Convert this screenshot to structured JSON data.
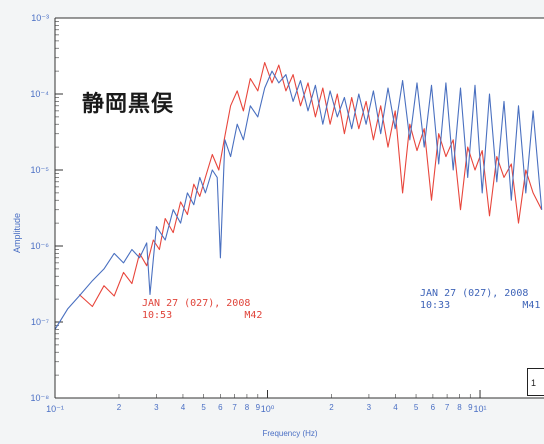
{
  "place_label": "静岡黒俣",
  "chart_data": {
    "type": "line",
    "xscale": "log",
    "yscale": "log",
    "xlim": [
      0.1,
      20
    ],
    "ylim": [
      1e-08,
      0.001
    ],
    "xlabel": "Frequency (Hz)",
    "ylabel": "Amplitude",
    "x_major_ticks": [
      {
        "value": 0.1,
        "label": "10⁻¹"
      },
      {
        "value": 1,
        "label": "10⁰"
      },
      {
        "value": 10,
        "label": "10¹"
      }
    ],
    "x_minor_ticks": [
      {
        "value": 0.2,
        "label": "2"
      },
      {
        "value": 0.3,
        "label": "3"
      },
      {
        "value": 0.4,
        "label": "4"
      },
      {
        "value": 0.5,
        "label": "5"
      },
      {
        "value": 0.6,
        "label": "6"
      },
      {
        "value": 0.7,
        "label": "7"
      },
      {
        "value": 0.8,
        "label": "8"
      },
      {
        "value": 0.9,
        "label": "9"
      },
      {
        "value": 2,
        "label": "2"
      },
      {
        "value": 3,
        "label": "3"
      },
      {
        "value": 4,
        "label": "4"
      },
      {
        "value": 5,
        "label": "5"
      },
      {
        "value": 6,
        "label": "6"
      },
      {
        "value": 7,
        "label": "7"
      },
      {
        "value": 8,
        "label": "8"
      },
      {
        "value": 9,
        "label": "9"
      }
    ],
    "y_ticks": [
      {
        "value": 0.001,
        "label": "10⁻³"
      },
      {
        "value": 0.0001,
        "label": "10⁻⁴"
      },
      {
        "value": 1e-05,
        "label": "10⁻⁵"
      },
      {
        "value": 1e-06,
        "label": "10⁻⁶"
      },
      {
        "value": 1e-07,
        "label": "10⁻⁷"
      },
      {
        "value": 1e-08,
        "label": "10⁻⁸"
      }
    ],
    "series": [
      {
        "color": "#e8463c",
        "annotation": [
          "JAN 27 (027), 2008",
          "10:53            M42"
        ],
        "x": [
          0.13,
          0.15,
          0.17,
          0.19,
          0.21,
          0.23,
          0.25,
          0.27,
          0.29,
          0.31,
          0.33,
          0.36,
          0.39,
          0.42,
          0.45,
          0.48,
          0.51,
          0.55,
          0.59,
          0.63,
          0.67,
          0.72,
          0.77,
          0.83,
          0.9,
          0.97,
          1.05,
          1.13,
          1.22,
          1.32,
          1.43,
          1.55,
          1.68,
          1.82,
          1.97,
          2.13,
          2.3,
          2.49,
          2.69,
          2.91,
          3.15,
          3.41,
          3.69,
          3.99,
          4.32,
          4.67,
          5.05,
          5.46,
          5.91,
          6.39,
          6.91,
          7.48,
          8.09,
          8.75,
          9.47,
          10.24,
          11.08,
          11.99,
          12.97,
          14.03,
          15.18,
          16.42,
          17.77,
          19.5
        ],
        "y": [
          2.3e-07,
          1.6e-07,
          3e-07,
          2.2e-07,
          4.5e-07,
          3.2e-07,
          8e-07,
          5.5e-07,
          1.2e-06,
          9e-07,
          2.3e-06,
          1.5e-06,
          3.8e-06,
          2.6e-06,
          6.5e-06,
          4.5e-06,
          8e-06,
          1.6e-05,
          1e-05,
          2.8e-05,
          7e-05,
          0.00011,
          6e-05,
          0.00016,
          0.00011,
          0.00026,
          0.00014,
          0.00024,
          0.00011,
          0.00018,
          7e-05,
          0.00014,
          5e-05,
          0.00012,
          4e-05,
          0.0001,
          3e-05,
          9e-05,
          3.5e-05,
          8e-05,
          2.5e-05,
          7e-05,
          2e-05,
          6e-05,
          5e-06,
          4e-05,
          1.8e-05,
          3.5e-05,
          4e-06,
          3e-05,
          1.5e-05,
          2.5e-05,
          3e-06,
          2e-05,
          1e-05,
          1.8e-05,
          2.5e-06,
          1.5e-05,
          8e-06,
          1.2e-05,
          2e-06,
          1e-05,
          5e-06,
          3e-06
        ]
      },
      {
        "color": "#4a70c0",
        "annotation": [
          "JAN 27 (027), 2008",
          "10:33            M41"
        ],
        "x": [
          0.1,
          0.115,
          0.13,
          0.15,
          0.17,
          0.19,
          0.21,
          0.23,
          0.25,
          0.27,
          0.28,
          0.3,
          0.33,
          0.36,
          0.39,
          0.42,
          0.45,
          0.48,
          0.51,
          0.55,
          0.58,
          0.6,
          0.63,
          0.67,
          0.72,
          0.77,
          0.83,
          0.9,
          0.97,
          1.05,
          1.13,
          1.22,
          1.32,
          1.43,
          1.55,
          1.68,
          1.82,
          1.97,
          2.13,
          2.3,
          2.49,
          2.69,
          2.91,
          3.15,
          3.41,
          3.69,
          3.99,
          4.32,
          4.67,
          5.05,
          5.46,
          5.91,
          6.39,
          6.91,
          7.48,
          8.09,
          8.75,
          9.47,
          10.24,
          11.08,
          11.99,
          12.97,
          14.03,
          15.18,
          16.42,
          17.77,
          19.5
        ],
        "y": [
          8e-08,
          1.5e-07,
          2.2e-07,
          3.5e-07,
          5e-07,
          8e-07,
          6e-07,
          9e-07,
          7e-07,
          1.1e-06,
          2.3e-07,
          1.8e-06,
          1.2e-06,
          3e-06,
          2e-06,
          5e-06,
          3.5e-06,
          8e-06,
          5e-06,
          1e-05,
          8e-06,
          7e-07,
          2.5e-05,
          1.5e-05,
          4e-05,
          2.5e-05,
          7e-05,
          5e-05,
          0.00012,
          0.0002,
          0.00014,
          0.00018,
          8e-05,
          0.00015,
          6e-05,
          0.00013,
          4e-05,
          0.00011,
          5e-05,
          9e-05,
          3.5e-05,
          0.0001,
          4e-05,
          0.00011,
          3e-05,
          0.00012,
          3.5e-05,
          0.00015,
          2.5e-05,
          0.00014,
          2e-05,
          0.00013,
          1.2e-05,
          0.00014,
          1e-05,
          0.00012,
          8e-06,
          0.00013,
          5e-06,
          0.0001,
          7e-06,
          8e-05,
          4e-06,
          7e-05,
          5e-06,
          6e-05,
          3e-06
        ]
      }
    ],
    "edge_box_text": "1"
  }
}
